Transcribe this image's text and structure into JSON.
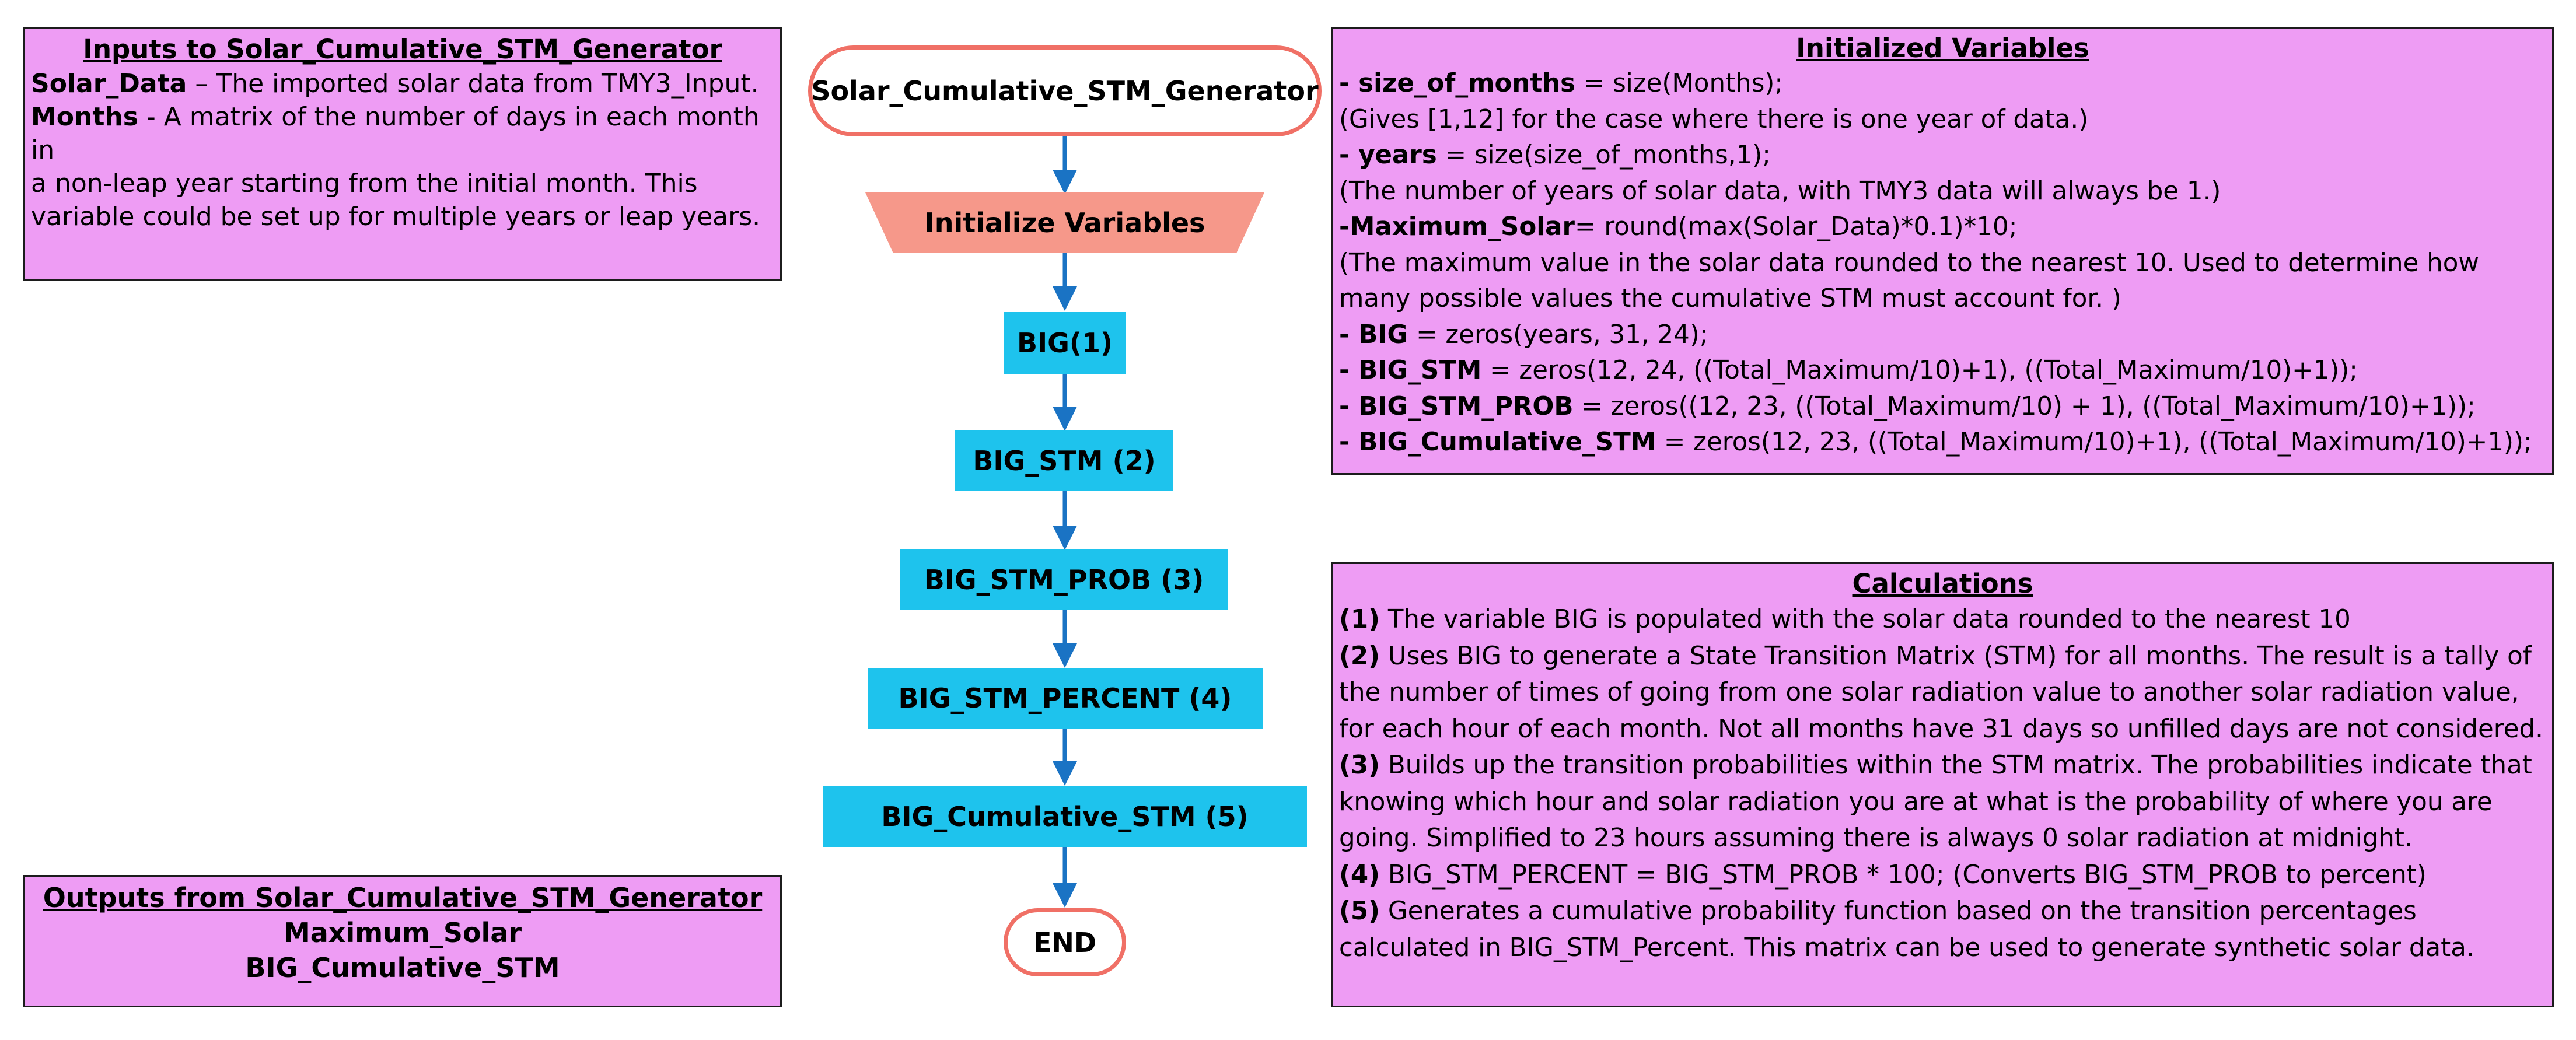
{
  "inputs": {
    "title": "Inputs to Solar_Cumulative_STM_Generator",
    "items": [
      {
        "term": "Solar_Data",
        "text": " – The imported solar data from TMY3_Input."
      },
      {
        "term": "Months",
        "text": "  - A matrix of the number of days in each month in"
      },
      {
        "term": "",
        "text": "a non-leap year starting from the initial month. This"
      },
      {
        "term": "",
        "text": "variable could be set up for multiple years or leap years."
      }
    ]
  },
  "outputs": {
    "title": "Outputs from Solar_Cumulative_STM_Generator",
    "items": [
      "Maximum_Solar",
      "BIG_Cumulative_STM"
    ]
  },
  "flow": {
    "start": "Solar_Cumulative_STM_Generator",
    "init": "Initialize Variables",
    "steps": [
      "BIG(1)",
      "BIG_STM (2)",
      "BIG_STM_PROB (3)",
      "BIG_STM_PERCENT (4)",
      "BIG_Cumulative_STM (5)"
    ],
    "end": "END",
    "colors": {
      "terminal_border": "#f07066",
      "process": "#1ec3ed",
      "init": "#f6988a",
      "arrow": "#1a73c4"
    }
  },
  "initialized": {
    "title": "Initialized Variables",
    "lines": [
      {
        "pre": "- ",
        "term": "size_of_months",
        "text": " = size(Months);"
      },
      {
        "pre": "",
        "term": "",
        "text": "(Gives [1,12] for the case where there is one year of data.)"
      },
      {
        "pre": "- ",
        "term": "years",
        "text": " = size(size_of_months,1);"
      },
      {
        "pre": "",
        "term": "",
        "text": "(The number of years of solar data, with TMY3 data will always be 1.)"
      },
      {
        "pre": "-",
        "term": "Maximum_Solar",
        "text": "= round(max(Solar_Data)*0.1)*10;"
      },
      {
        "pre": "",
        "term": "",
        "text": "(The maximum value in the solar data rounded to the nearest 10. Used to determine how"
      },
      {
        "pre": "",
        "term": "",
        "text": "many possible values the cumulative STM must account for. )"
      },
      {
        "pre": "- ",
        "term": "BIG",
        "text": " = zeros(years, 31, 24);"
      },
      {
        "pre": "- ",
        "term": "BIG_STM",
        "text": " = zeros(12, 24, ((Total_Maximum/10)+1), ((Total_Maximum/10)+1));"
      },
      {
        "pre": "- ",
        "term": "BIG_STM_PROB",
        "text": " = zeros((12, 23, ((Total_Maximum/10) + 1), ((Total_Maximum/10)+1));"
      },
      {
        "pre": "- ",
        "term": "BIG_Cumulative_STM",
        "text": " = zeros(12, 23, ((Total_Maximum/10)+1), ((Total_Maximum/10)+1));"
      }
    ]
  },
  "calculations": {
    "title": "Calculations",
    "items": [
      {
        "num": "(1)",
        "text": " The variable BIG is populated with the solar data rounded to the nearest 10"
      },
      {
        "num": "(2)",
        "text": " Uses BIG to generate a State Transition Matrix (STM) for all months. The result is a tally of the number of times of going from one solar radiation value to another solar radiation value, for each hour of each month. Not all months have 31 days so unfilled days are not considered."
      },
      {
        "num": "(3)",
        "text": " Builds up the transition probabilities within the STM matrix. The probabilities indicate that knowing which hour and solar radiation you are at  what is the probability of where you are going. Simplified to 23 hours assuming there is always 0 solar radiation at midnight."
      },
      {
        "num": "(4)",
        "text": " BIG_STM_PERCENT = BIG_STM_PROB * 100; (Converts BIG_STM_PROB to percent)"
      },
      {
        "num": "(5)",
        "text": " Generates a cumulative probability function based on the transition percentages calculated in BIG_STM_Percent. This matrix can be used to generate synthetic solar data."
      }
    ]
  }
}
